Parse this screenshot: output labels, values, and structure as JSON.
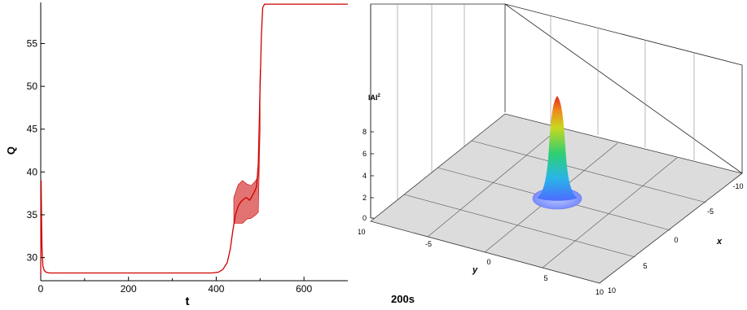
{
  "chart_data": [
    {
      "type": "line",
      "xlabel": "t",
      "ylabel": "Q",
      "xlim": [
        0,
        700
      ],
      "ylim": [
        27.3,
        59.8
      ],
      "x_ticks": [
        "0",
        "200",
        "400",
        "600"
      ],
      "y_ticks": [
        "30",
        "35",
        "40",
        "45",
        "50",
        "55"
      ],
      "grid": false,
      "line_color": "#cc0000",
      "series": [
        {
          "x": [
            0,
            1,
            2,
            3,
            5,
            8,
            12,
            20,
            40,
            100,
            200,
            300,
            390,
            405,
            415,
            425,
            432,
            438,
            444,
            450,
            456,
            462,
            468,
            472,
            476,
            480,
            484,
            488,
            492,
            496,
            500,
            503,
            506,
            510,
            515,
            525,
            560,
            620,
            700
          ],
          "y": [
            28,
            39,
            34,
            31,
            29,
            28.5,
            28.3,
            28.2,
            28.2,
            28.2,
            28.2,
            28.2,
            28.2,
            28.3,
            28.6,
            29.4,
            31,
            33.2,
            35,
            36,
            36.5,
            36.8,
            37,
            36.9,
            36.7,
            37,
            37.4,
            37.8,
            38.3,
            41,
            50,
            56,
            59.2,
            59.6,
            59.6,
            59.6,
            59.6,
            59.6,
            59.6
          ],
          "oscillation_band": {
            "x": [
              440,
              450,
              460,
              470,
              480,
              490,
              496,
              500
            ],
            "low": [
              34,
              34,
              34,
              34.5,
              34.6,
              35,
              35.3,
              45
            ],
            "high": [
              37,
              38.5,
              39,
              38.6,
              38.4,
              39,
              39.5,
              52
            ]
          }
        }
      ]
    },
    {
      "type": "surface-3d",
      "zlabel": "IAI",
      "zlabel_sup": "2",
      "xlabel": "x",
      "ylabel": "y",
      "caption": "200s",
      "x_ticks": [
        "-10",
        "-5",
        "0",
        "5",
        "10"
      ],
      "y_ticks": [
        "-10",
        "-5",
        "0",
        "5",
        "10"
      ],
      "z_ticks": [
        "0",
        "2",
        "4",
        "6",
        "8"
      ],
      "xlim": [
        -10,
        10
      ],
      "ylim": [
        -10,
        10
      ],
      "zlim": [
        0,
        8
      ],
      "peak": {
        "x": 0,
        "y": 0,
        "z": 11
      },
      "floor_color": "#dcdcdc"
    }
  ]
}
